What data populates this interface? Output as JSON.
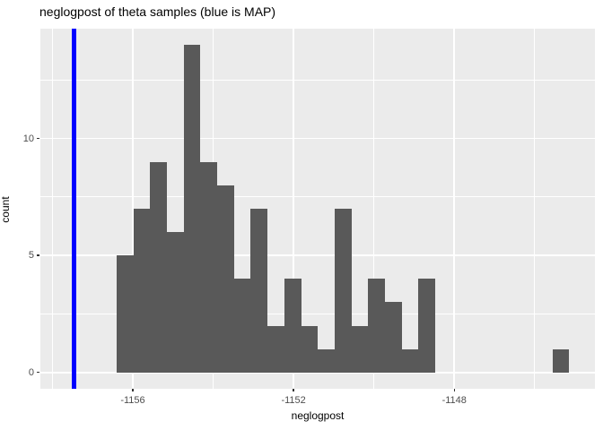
{
  "chart_data": {
    "type": "bar",
    "subtype": "histogram",
    "title": "neglogpost of theta samples (blue is MAP)",
    "xlabel": "neglogpost",
    "ylabel": "count",
    "bin_start": -1156.4,
    "bin_width": 0.417,
    "counts": [
      5,
      7,
      9,
      6,
      14,
      9,
      8,
      4,
      7,
      2,
      4,
      2,
      1,
      7,
      2,
      4,
      3,
      1,
      4,
      0,
      0,
      0,
      0,
      0,
      0,
      0,
      1
    ],
    "map_line_x": -1157.47,
    "x_ticks": [
      -1156,
      -1152,
      -1148
    ],
    "x_minor_ticks": [
      -1158,
      -1154,
      -1150,
      -1146
    ],
    "y_ticks": [
      0,
      5,
      10
    ],
    "y_minor_ticks": [
      2.5,
      7.5,
      12.5
    ],
    "x_range": [
      -1158.3,
      -1144.5
    ],
    "y_range": [
      -0.7,
      14.7
    ],
    "grid": "on",
    "legend_position": "none",
    "annotation": "blue vertical line marks MAP estimate"
  },
  "colors": {
    "page_bg": "#FFFFFF",
    "panel_bg": "#EBEBEB",
    "bar": "#595959",
    "map_line": "#0000FF",
    "grid_major": "#FFFFFF",
    "grid_minor": "#FFFFFF",
    "tick_mark": "#333333",
    "tick_label": "#4D4D4D",
    "title": "#000000"
  }
}
